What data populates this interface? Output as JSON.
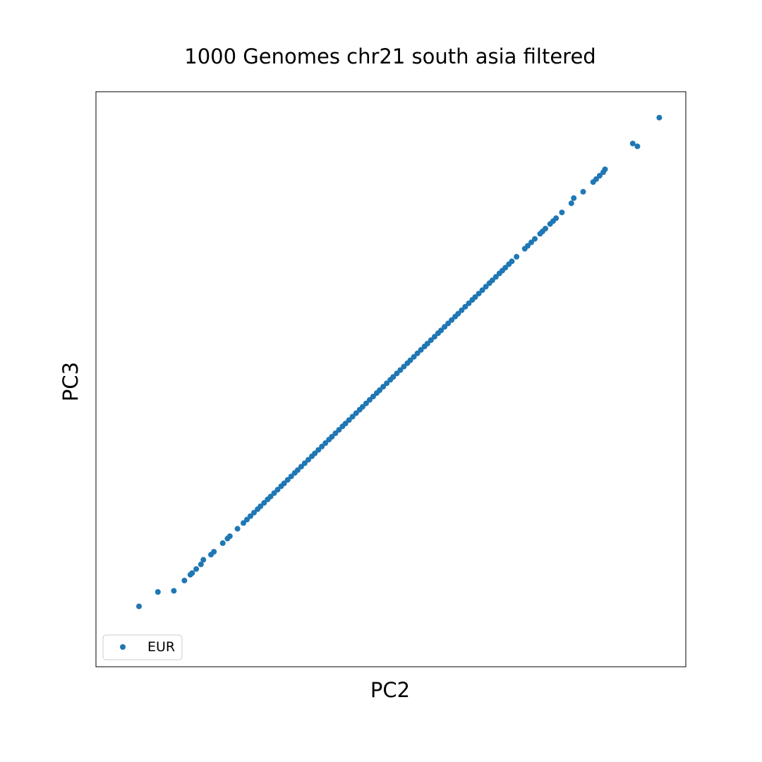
{
  "chart_data": {
    "type": "scatter",
    "title": "1000 Genomes chr21 south asia filtered",
    "xlabel": "PC2",
    "ylabel": "PC3",
    "xlim": [
      0,
      100
    ],
    "ylim": [
      0,
      100
    ],
    "grid": false,
    "ticks": false,
    "legend_placement": "lower-left",
    "series": [
      {
        "name": "EUR",
        "color": "#1f77b4",
        "x": [
          95.5,
          91.8,
          91.0,
          86.3,
          86.0,
          85.4,
          84.8,
          84.3,
          82.6,
          81.0,
          80.6,
          79.0,
          78.0,
          77.5,
          77.0,
          76.2,
          75.7,
          75.3,
          74.4,
          73.8,
          73.2,
          72.7,
          71.3,
          70.5,
          70.0,
          69.4,
          68.9,
          68.4,
          67.8,
          67.2,
          66.7,
          66.1,
          65.5,
          64.9,
          64.3,
          63.8,
          63.2,
          62.6,
          62.0,
          61.4,
          60.9,
          60.3,
          59.7,
          59.1,
          58.5,
          58.0,
          57.4,
          56.8,
          56.2,
          55.7,
          55.1,
          54.5,
          53.9,
          53.3,
          52.8,
          52.2,
          51.6,
          51.0,
          50.4,
          49.9,
          49.3,
          48.7,
          48.1,
          47.6,
          47.0,
          46.4,
          45.8,
          45.2,
          44.7,
          44.1,
          43.5,
          42.9,
          42.3,
          41.8,
          41.2,
          40.6,
          40.0,
          39.5,
          38.9,
          38.3,
          37.7,
          37.1,
          36.6,
          36.0,
          35.4,
          34.8,
          34.2,
          33.7,
          33.1,
          32.5,
          31.9,
          31.4,
          30.8,
          30.2,
          29.6,
          29.1,
          28.5,
          27.9,
          27.4,
          26.8,
          26.2,
          25.6,
          25.0,
          24.0,
          22.7,
          22.3,
          21.5,
          20.0,
          19.5,
          18.2,
          17.8,
          17.0,
          16.3,
          16.0,
          15.0,
          13.2,
          10.5,
          7.3
        ],
        "y": [
          95.5,
          90.5,
          91.0,
          86.5,
          86.0,
          85.4,
          84.8,
          84.3,
          82.6,
          81.5,
          80.6,
          79.0,
          78.0,
          77.5,
          77.0,
          76.2,
          75.7,
          75.3,
          74.4,
          73.8,
          73.2,
          72.7,
          71.3,
          70.5,
          70.0,
          69.4,
          68.9,
          68.4,
          67.8,
          67.2,
          66.7,
          66.1,
          65.5,
          64.9,
          64.3,
          63.8,
          63.2,
          62.6,
          62.0,
          61.4,
          60.9,
          60.3,
          59.7,
          59.1,
          58.5,
          58.0,
          57.4,
          56.8,
          56.2,
          55.7,
          55.1,
          54.5,
          53.9,
          53.3,
          52.8,
          52.2,
          51.6,
          51.0,
          50.4,
          49.9,
          49.3,
          48.7,
          48.1,
          47.6,
          47.0,
          46.4,
          45.8,
          45.2,
          44.7,
          44.1,
          43.5,
          42.9,
          42.3,
          41.8,
          41.2,
          40.6,
          40.0,
          39.5,
          38.9,
          38.3,
          37.7,
          37.1,
          36.6,
          36.0,
          35.4,
          34.8,
          34.2,
          33.7,
          33.1,
          32.5,
          31.9,
          31.4,
          30.8,
          30.2,
          29.6,
          29.1,
          28.5,
          27.9,
          27.4,
          26.8,
          26.2,
          25.6,
          25.0,
          24.0,
          22.7,
          22.3,
          21.5,
          20.0,
          19.5,
          18.6,
          17.8,
          17.0,
          16.3,
          16.0,
          15.0,
          13.2,
          13.0,
          10.5
        ]
      }
    ]
  }
}
